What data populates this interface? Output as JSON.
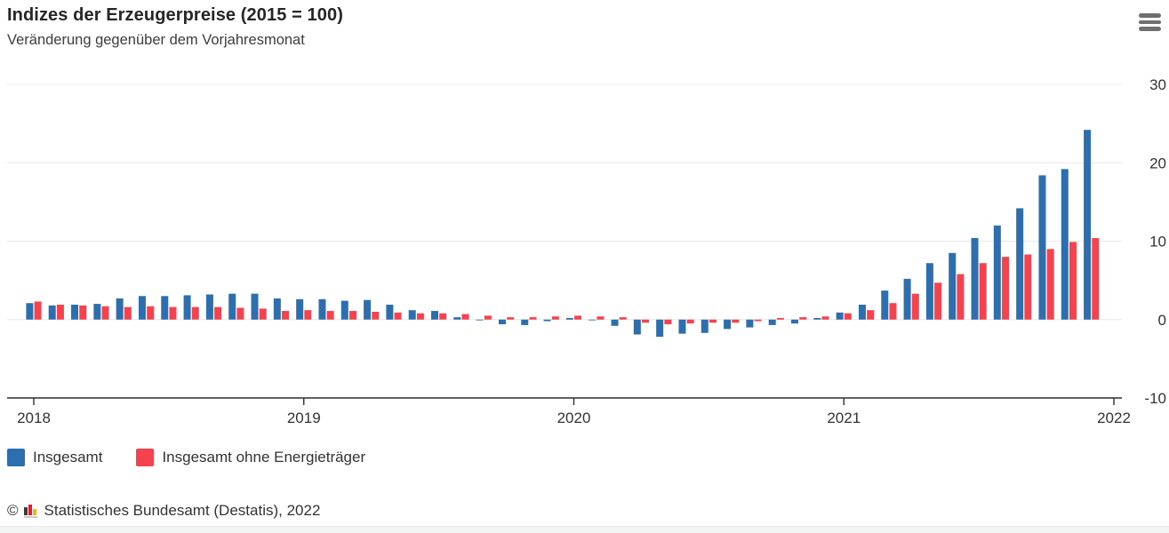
{
  "header": {
    "title": "Indizes der Erzeugerpreise (2015 = 100)",
    "subtitle": "Veränderung gegenüber dem Vorjahresmonat"
  },
  "menu": {
    "icon": "hamburger-icon",
    "label": "Chart-Menü"
  },
  "chart_data": {
    "type": "bar",
    "title": "Indizes der Erzeugerpreise (2015 = 100)",
    "subtitle": "Veränderung gegenüber dem Vorjahresmonat",
    "grid": true,
    "legend_position": "bottom",
    "ylim": [
      -10,
      30
    ],
    "y_ticks": [
      30,
      20,
      10,
      0,
      -10
    ],
    "y_tick_labels": [
      "30",
      "20",
      "10",
      "0",
      "-10"
    ],
    "x_tick_labels": [
      "2018",
      "2019",
      "2020",
      "2021",
      "2022"
    ],
    "x_tick_month_index": [
      0,
      12,
      24,
      36,
      48
    ],
    "months": [
      "2018-01",
      "2018-02",
      "2018-03",
      "2018-04",
      "2018-05",
      "2018-06",
      "2018-07",
      "2018-08",
      "2018-09",
      "2018-10",
      "2018-11",
      "2018-12",
      "2019-01",
      "2019-02",
      "2019-03",
      "2019-04",
      "2019-05",
      "2019-06",
      "2019-07",
      "2019-08",
      "2019-09",
      "2019-10",
      "2019-11",
      "2019-12",
      "2020-01",
      "2020-02",
      "2020-03",
      "2020-04",
      "2020-05",
      "2020-06",
      "2020-07",
      "2020-08",
      "2020-09",
      "2020-10",
      "2020-11",
      "2020-12",
      "2021-01",
      "2021-02",
      "2021-03",
      "2021-04",
      "2021-05",
      "2021-06",
      "2021-07",
      "2021-08",
      "2021-09",
      "2021-10",
      "2021-11",
      "2021-12"
    ],
    "series": [
      {
        "name": "Insgesamt",
        "color": "#2d6eae",
        "values": [
          2.1,
          1.8,
          1.9,
          2.0,
          2.7,
          3.0,
          3.0,
          3.1,
          3.2,
          3.3,
          3.3,
          2.7,
          2.6,
          2.6,
          2.4,
          2.5,
          1.9,
          1.2,
          1.1,
          0.3,
          -0.1,
          -0.6,
          -0.7,
          -0.2,
          0.2,
          -0.1,
          -0.8,
          -1.9,
          -2.2,
          -1.8,
          -1.7,
          -1.2,
          -1.0,
          -0.7,
          -0.5,
          0.2,
          0.9,
          1.9,
          3.7,
          5.2,
          7.2,
          8.5,
          10.4,
          12.0,
          14.2,
          18.4,
          19.2,
          24.2
        ]
      },
      {
        "name": "Insgesamt ohne Energieträger",
        "color": "#f4434e",
        "values": [
          2.3,
          1.9,
          1.8,
          1.7,
          1.6,
          1.7,
          1.6,
          1.6,
          1.6,
          1.5,
          1.4,
          1.1,
          1.2,
          1.1,
          1.1,
          1.0,
          0.9,
          0.8,
          0.8,
          0.7,
          0.5,
          0.3,
          0.3,
          0.4,
          0.5,
          0.4,
          0.3,
          -0.4,
          -0.6,
          -0.5,
          -0.4,
          -0.4,
          -0.2,
          0.2,
          0.3,
          0.4,
          0.8,
          1.2,
          2.1,
          3.3,
          4.7,
          5.8,
          7.2,
          8.0,
          8.3,
          9.0,
          9.9,
          10.4
        ]
      }
    ],
    "colors": {
      "gridline": "#e8e8e8",
      "axis": "#2f2f2f",
      "tick_label": "#333333"
    }
  },
  "legend": {
    "items": [
      {
        "label": "Insgesamt",
        "color": "#2d6eae"
      },
      {
        "label": "Insgesamt ohne Energieträger",
        "color": "#f4434e"
      }
    ]
  },
  "footer": {
    "copyright": "©",
    "logo": "destatis-logo-icon",
    "source": "Statistisches Bundesamt (Destatis), 2022"
  }
}
